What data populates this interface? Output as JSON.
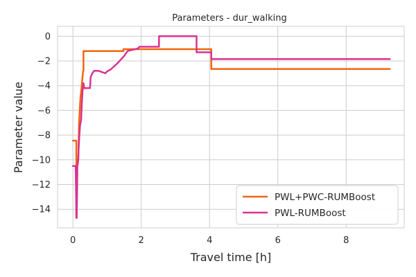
{
  "chart_data": {
    "type": "line",
    "title": "Parameters - dur_walking",
    "xlabel": "Travel time [h]",
    "ylabel": "Parameter value",
    "xlim": [
      -0.45,
      9.7
    ],
    "ylim": [
      -15.5,
      0.8
    ],
    "xticks": [
      0,
      2,
      4,
      6,
      8
    ],
    "yticks": [
      0,
      -2,
      -4,
      -6,
      -8,
      -10,
      -12,
      -14
    ],
    "grid": true,
    "legend_position": "bottom-right",
    "series": [
      {
        "name": "PWL+PWC-RUMBoost",
        "color": "#f0650f",
        "points": [
          [
            0.0,
            -8.45
          ],
          [
            0.1,
            -8.45
          ],
          [
            0.1,
            -10.5
          ],
          [
            0.13,
            -10.5
          ],
          [
            0.13,
            -10.0
          ],
          [
            0.16,
            -10.0
          ],
          [
            0.18,
            -7.0
          ],
          [
            0.2,
            -6.0
          ],
          [
            0.22,
            -5.0
          ],
          [
            0.25,
            -4.2
          ],
          [
            0.28,
            -3.3
          ],
          [
            0.3,
            -2.8
          ],
          [
            0.31,
            -2.8
          ],
          [
            0.31,
            -1.2
          ],
          [
            1.48,
            -1.2
          ],
          [
            1.48,
            -1.05
          ],
          [
            4.05,
            -1.05
          ],
          [
            4.05,
            -2.65
          ],
          [
            9.28,
            -2.65
          ]
        ]
      },
      {
        "name": "PWL-RUMBoost",
        "color": "#d93290",
        "points": [
          [
            0.0,
            -10.5
          ],
          [
            0.08,
            -10.5
          ],
          [
            0.09,
            -12.0
          ],
          [
            0.1,
            -14.7
          ],
          [
            0.11,
            -14.7
          ],
          [
            0.12,
            -13.0
          ],
          [
            0.13,
            -10.5
          ],
          [
            0.15,
            -10.2
          ],
          [
            0.17,
            -9.0
          ],
          [
            0.19,
            -8.0
          ],
          [
            0.21,
            -7.2
          ],
          [
            0.24,
            -6.8
          ],
          [
            0.26,
            -5.5
          ],
          [
            0.28,
            -4.5
          ],
          [
            0.31,
            -3.8
          ],
          [
            0.33,
            -4.2
          ],
          [
            0.5,
            -4.2
          ],
          [
            0.52,
            -3.3
          ],
          [
            0.57,
            -3.0
          ],
          [
            0.62,
            -2.8
          ],
          [
            0.75,
            -2.8
          ],
          [
            0.85,
            -2.9
          ],
          [
            0.95,
            -3.0
          ],
          [
            1.0,
            -2.85
          ],
          [
            1.1,
            -2.7
          ],
          [
            1.2,
            -2.45
          ],
          [
            1.3,
            -2.2
          ],
          [
            1.4,
            -1.9
          ],
          [
            1.5,
            -1.6
          ],
          [
            1.6,
            -1.2
          ],
          [
            1.75,
            -1.1
          ],
          [
            1.9,
            -1.0
          ],
          [
            1.95,
            -0.85
          ],
          [
            2.52,
            -0.85
          ],
          [
            2.52,
            0.0
          ],
          [
            3.62,
            0.0
          ],
          [
            3.62,
            -1.3
          ],
          [
            4.05,
            -1.3
          ],
          [
            4.05,
            -1.85
          ],
          [
            9.28,
            -1.85
          ]
        ]
      }
    ]
  }
}
